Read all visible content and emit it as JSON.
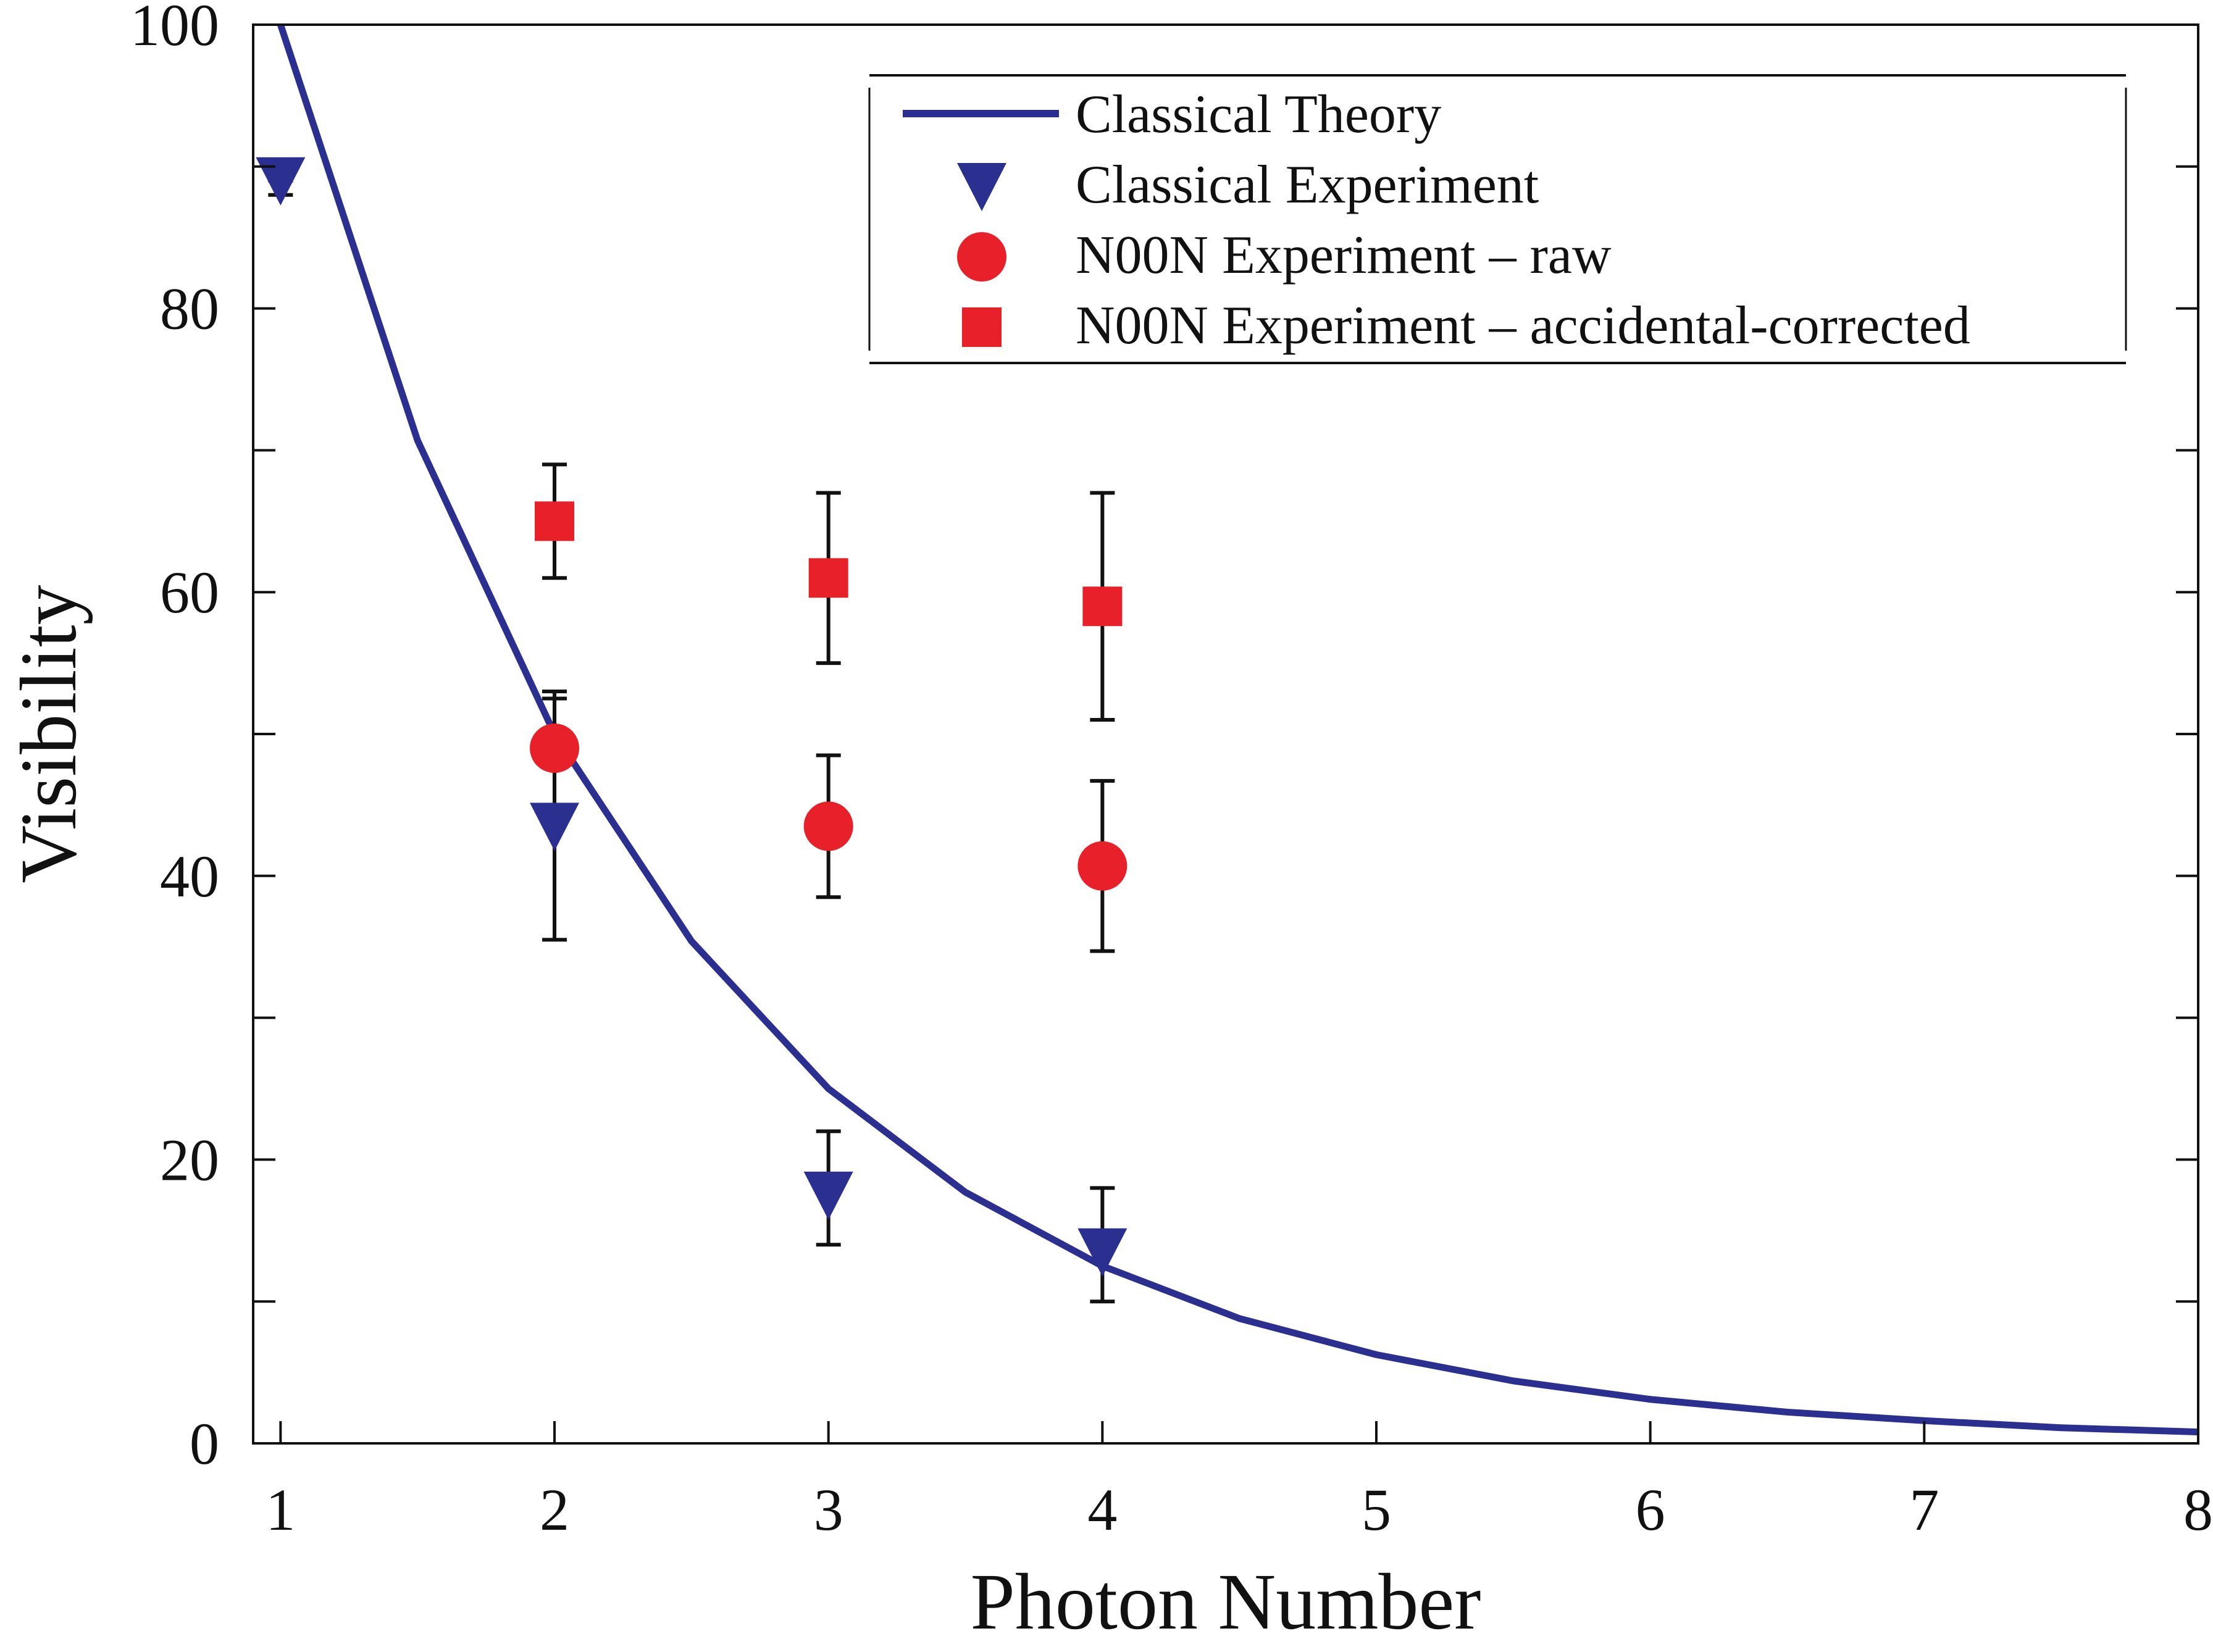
{
  "chart_data": {
    "type": "scatter",
    "xlabel": "Photon Number",
    "ylabel": "Visibility",
    "xlim": [
      0.9,
      8
    ],
    "ylim": [
      0,
      100
    ],
    "x_ticks": [
      "1",
      "2",
      "3",
      "4",
      "5",
      "6",
      "7",
      "8"
    ],
    "y_ticks": [
      "0",
      "20",
      "40",
      "60",
      "80",
      "100"
    ],
    "y_minor_ticks": [
      10,
      30,
      50,
      70,
      90
    ],
    "grid": false,
    "legend_position": "top-right",
    "series": [
      {
        "name": "Classical Theory",
        "kind": "line",
        "color": "#2b2f8f",
        "x": [
          1,
          1.5,
          2,
          2.5,
          3,
          3.5,
          4,
          4.5,
          5,
          5.5,
          6,
          6.5,
          7,
          7.5,
          8
        ],
        "y": [
          100,
          70.7,
          50,
          35.4,
          25,
          17.7,
          12.5,
          8.8,
          6.25,
          4.4,
          3.1,
          2.2,
          1.6,
          1.1,
          0.8
        ]
      },
      {
        "name": "Classical Experiment",
        "kind": "marker",
        "marker": "triangle-down",
        "color": "#2b2f8f",
        "points": [
          {
            "x": 1,
            "y": 89,
            "err_low": 88,
            "err_high": 89
          },
          {
            "x": 2,
            "y": 43.5,
            "err_low": 35.5,
            "err_high": 52.5
          },
          {
            "x": 3,
            "y": 17.5,
            "err_low": 14,
            "err_high": 22
          },
          {
            "x": 4,
            "y": 13.5,
            "err_low": 10,
            "err_high": 18
          }
        ]
      },
      {
        "name": "N00N Experiment – raw",
        "kind": "marker",
        "marker": "circle",
        "color": "#e8202a",
        "points": [
          {
            "x": 2,
            "y": 49,
            "err_low": 45,
            "err_high": 53
          },
          {
            "x": 3,
            "y": 43.5,
            "err_low": 38.5,
            "err_high": 48.5
          },
          {
            "x": 4,
            "y": 40.7,
            "err_low": 34.7,
            "err_high": 46.7
          }
        ]
      },
      {
        "name": "N00N Experiment – accidental-corrected",
        "kind": "marker",
        "marker": "square",
        "color": "#e8202a",
        "points": [
          {
            "x": 2,
            "y": 65,
            "err_low": 61,
            "err_high": 69
          },
          {
            "x": 3,
            "y": 61,
            "err_low": 55,
            "err_high": 67
          },
          {
            "x": 4,
            "y": 59,
            "err_low": 51,
            "err_high": 67
          }
        ]
      }
    ]
  }
}
